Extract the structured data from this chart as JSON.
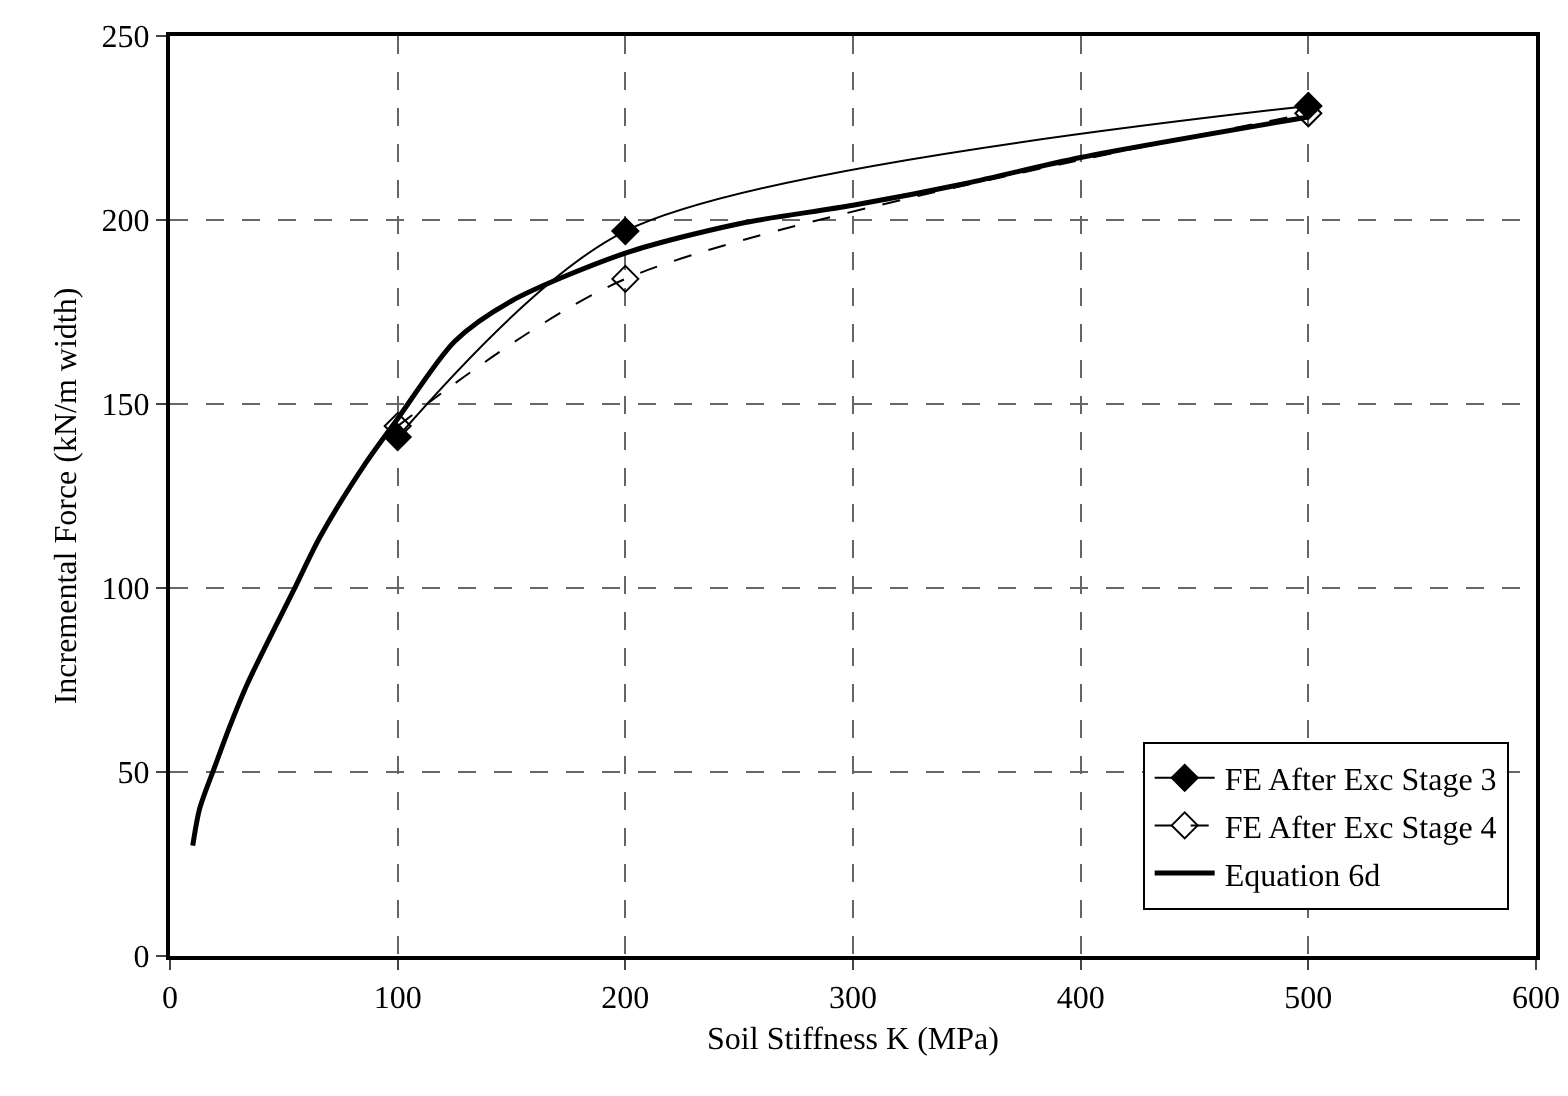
{
  "chart_data": {
    "type": "line",
    "xlabel": "Soil Stiffness K (MPa)",
    "ylabel": "Incremental Force (kN/m width)",
    "xlim": [
      0,
      600
    ],
    "xticks": [
      0,
      100,
      200,
      300,
      400,
      500,
      600
    ],
    "ylim": [
      0,
      250
    ],
    "yticks": [
      0,
      50,
      100,
      150,
      200,
      250
    ],
    "grid": true,
    "legend": "bottom right",
    "series": [
      {
        "name": "FE After Exc Stage 3",
        "color": "#000000",
        "marker": "diamond",
        "line_style": "solid",
        "x": [
          100,
          200,
          500
        ],
        "values": [
          141,
          197,
          231
        ]
      },
      {
        "name": "FE After Exc Stage 4",
        "color": "#000000",
        "marker": "diamond",
        "line_style": "dashed",
        "x": [
          100,
          200,
          500
        ],
        "values": [
          144,
          184,
          229
        ]
      },
      {
        "name": "Equation 6d",
        "color": "#000000",
        "marker": "none",
        "line_style": "solid",
        "x": [
          10,
          13,
          20,
          26,
          34,
          54,
          66,
          86,
          100,
          125,
          150,
          200,
          250,
          300,
          350,
          400,
          500
        ],
        "values": [
          30,
          40,
          52,
          62,
          74,
          99,
          114,
          134,
          146,
          167,
          178,
          191,
          199,
          204,
          210,
          217,
          228
        ]
      }
    ]
  }
}
